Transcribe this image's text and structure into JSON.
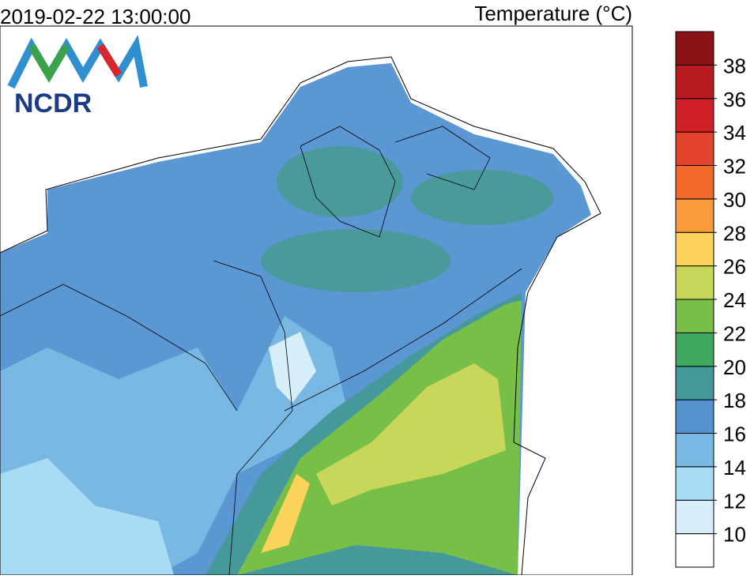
{
  "header": {
    "timestamp": "2019-02-22 13:00:00",
    "title": "Temperature (°C)"
  },
  "logo": {
    "text": "NCDR"
  },
  "colorbar": {
    "levels": [
      10,
      12,
      14,
      16,
      18,
      20,
      22,
      24,
      26,
      28,
      30,
      32,
      34,
      36,
      38
    ],
    "colors": [
      "#ffffff",
      "#d6eef8",
      "#a8dcf5",
      "#7ab8e4",
      "#5593d0",
      "#46999a",
      "#3fa95d",
      "#78bf48",
      "#c8d75a",
      "#fbd35a",
      "#f99b3c",
      "#f26a2b",
      "#e2432a",
      "#d02027",
      "#b81c22",
      "#8b1316"
    ]
  }
}
